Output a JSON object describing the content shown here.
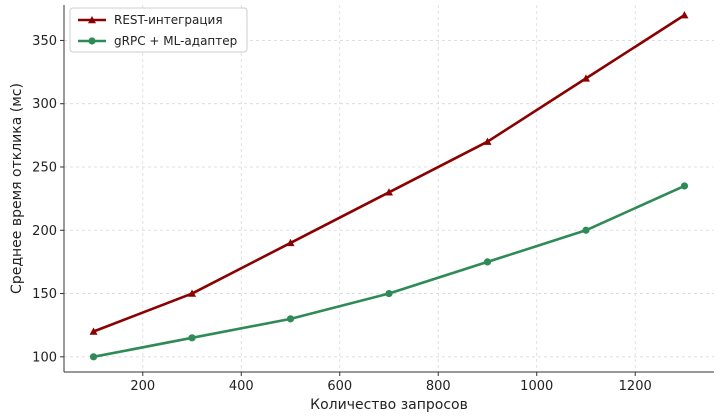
{
  "chart_data": {
    "type": "line",
    "title": "",
    "xlabel": "Количество запросов",
    "ylabel": "Среднее время отклика (мс)",
    "x": [
      100,
      300,
      500,
      700,
      900,
      1100,
      1300
    ],
    "xlim": [
      40,
      1360
    ],
    "ylim": [
      88,
      378
    ],
    "xticks": [
      200,
      400,
      600,
      800,
      1000,
      1200
    ],
    "yticks": [
      100,
      150,
      200,
      250,
      300,
      350
    ],
    "grid": true,
    "legend_position": "top-left",
    "series": [
      {
        "name": "REST-интеграция",
        "values": [
          120,
          150,
          190,
          230,
          270,
          320,
          370
        ],
        "color": "#8b0000",
        "marker": "triangle"
      },
      {
        "name": "gRPC + ML-адаптер",
        "values": [
          100,
          115,
          130,
          150,
          175,
          200,
          235
        ],
        "color": "#2e8b57",
        "marker": "circle"
      }
    ]
  }
}
